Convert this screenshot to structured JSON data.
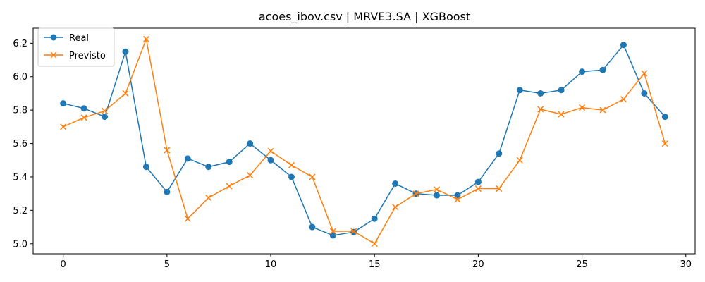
{
  "chart_data": {
    "type": "line",
    "title": "acoes_ibov.csv | MRVE3.SA | XGBoost",
    "xlabel": "",
    "ylabel": "",
    "xlim": [
      -1.45,
      30.45
    ],
    "ylim": [
      4.94,
      6.29
    ],
    "xticks": [
      0,
      5,
      10,
      15,
      20,
      25,
      30
    ],
    "yticks": [
      5.0,
      5.2,
      5.4,
      5.6,
      5.8,
      6.0,
      6.2
    ],
    "ytick_labels": [
      "5.0",
      "5.2",
      "5.4",
      "5.6",
      "5.8",
      "6.0",
      "6.2"
    ],
    "grid": false,
    "legend_position": "top-left",
    "x": [
      0,
      1,
      2,
      3,
      4,
      5,
      6,
      7,
      8,
      9,
      10,
      11,
      12,
      13,
      14,
      15,
      16,
      17,
      18,
      19,
      20,
      21,
      22,
      23,
      24,
      25,
      26,
      27,
      28,
      29
    ],
    "series": [
      {
        "name": "Real",
        "color": "#1f77b4",
        "marker": "circle",
        "values": [
          5.84,
          5.81,
          5.76,
          6.15,
          5.46,
          5.31,
          5.51,
          5.46,
          5.49,
          5.6,
          5.5,
          5.4,
          5.1,
          5.05,
          5.07,
          5.15,
          5.36,
          5.3,
          5.29,
          5.29,
          5.37,
          5.54,
          5.92,
          5.9,
          5.92,
          6.03,
          6.04,
          6.19,
          5.9,
          5.76
        ]
      },
      {
        "name": "Previsto",
        "color": "#ff7f0e",
        "marker": "x",
        "values": [
          5.7,
          5.755,
          5.795,
          5.9,
          6.225,
          5.56,
          5.15,
          5.275,
          5.345,
          5.41,
          5.555,
          5.47,
          5.4,
          5.075,
          5.075,
          5.0,
          5.22,
          5.3,
          5.325,
          5.265,
          5.33,
          5.33,
          5.5,
          5.805,
          5.775,
          5.815,
          5.8,
          5.865,
          6.02,
          5.6
        ]
      }
    ]
  }
}
